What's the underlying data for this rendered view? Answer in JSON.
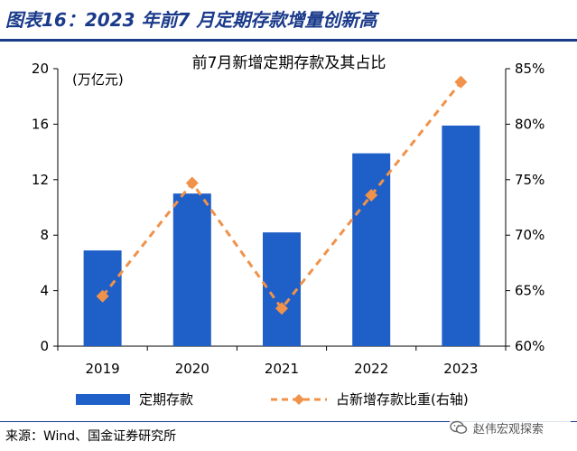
{
  "figure_title": "图表16：2023 年前7 月定期存款增量创新高",
  "source_note": "来源：Wind、国金证券研究所",
  "watermark": "赵伟宏观探索",
  "colors": {
    "bar": "#1f5fc8",
    "line": "#f0924a",
    "title": "#1a3a8a"
  },
  "chart_data": {
    "type": "bar",
    "title": "前7月新增定期存款及其占比",
    "unit_label": "(万亿元)",
    "categories": [
      "2019",
      "2020",
      "2021",
      "2022",
      "2023"
    ],
    "series": [
      {
        "name": "定期存款",
        "type": "bar",
        "axis": "left",
        "values": [
          6.9,
          11.0,
          8.2,
          13.9,
          15.9
        ]
      },
      {
        "name": "占新增存款比重(右轴)",
        "type": "line",
        "axis": "right",
        "values": [
          64.5,
          74.7,
          63.4,
          73.6,
          83.8
        ]
      }
    ],
    "left_axis": {
      "min": 0,
      "max": 20,
      "ticks": [
        "0",
        "4",
        "8",
        "12",
        "16",
        "20"
      ],
      "tick_values": [
        0,
        4,
        8,
        12,
        16,
        20
      ]
    },
    "right_axis": {
      "min": 60,
      "max": 85,
      "ticks": [
        "60%",
        "65%",
        "70%",
        "75%",
        "80%",
        "85%"
      ],
      "tick_values": [
        60,
        65,
        70,
        75,
        80,
        85
      ]
    },
    "grid": false,
    "legend_position": "bottom"
  }
}
